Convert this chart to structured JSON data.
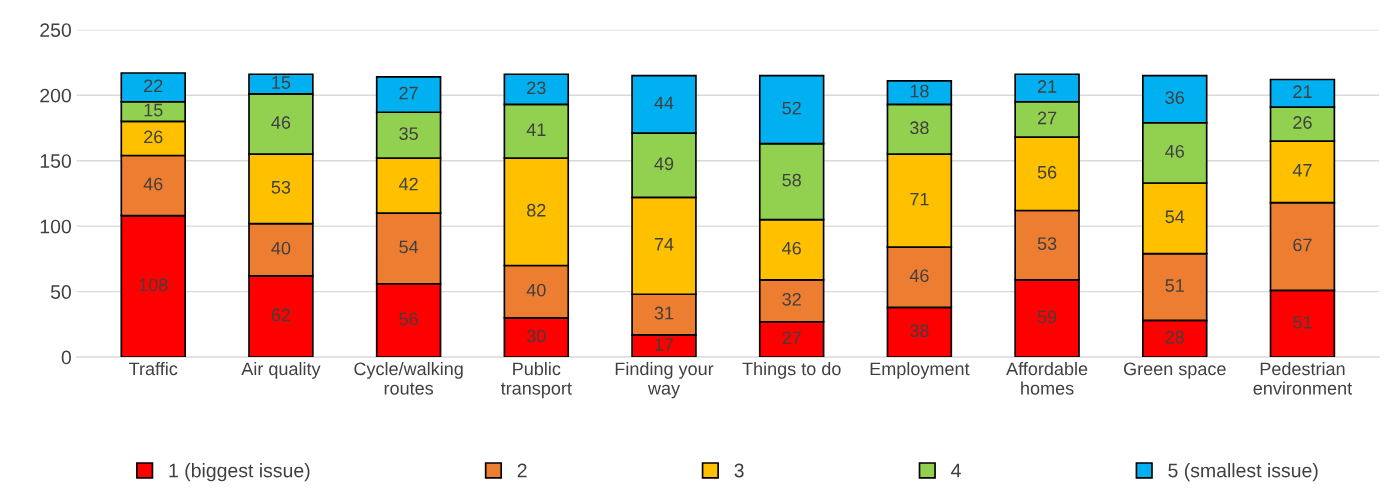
{
  "chart_data": {
    "type": "bar",
    "stacked": true,
    "data_labels": true,
    "grid": "y",
    "legend": "bottom",
    "categories": [
      "Traffic",
      "Air quality",
      "Cycle/walking\nroutes",
      "Public\ntransport",
      "Finding your\nway",
      "Things to do",
      "Employment",
      "Affordable\nhomes",
      "Green space",
      "Pedestrian\nenvironment"
    ],
    "ylim": [
      0,
      250
    ],
    "yticks": [
      0,
      50,
      100,
      150,
      200,
      250
    ],
    "series": [
      {
        "name": "1 (biggest issue)",
        "color": "#ff0000",
        "values": [
          108,
          62,
          56,
          30,
          17,
          27,
          38,
          59,
          28,
          51
        ]
      },
      {
        "name": "2",
        "color": "#ed7d31",
        "values": [
          46,
          40,
          54,
          40,
          31,
          32,
          46,
          53,
          51,
          67
        ]
      },
      {
        "name": "3",
        "color": "#ffc000",
        "values": [
          26,
          53,
          42,
          82,
          74,
          46,
          71,
          56,
          54,
          47
        ]
      },
      {
        "name": "4",
        "color": "#92d050",
        "values": [
          15,
          46,
          35,
          41,
          49,
          58,
          38,
          27,
          46,
          26
        ]
      },
      {
        "name": "5 (smallest issue)",
        "color": "#00b0f0",
        "values": [
          22,
          15,
          27,
          23,
          44,
          52,
          18,
          21,
          36,
          21
        ]
      }
    ]
  }
}
